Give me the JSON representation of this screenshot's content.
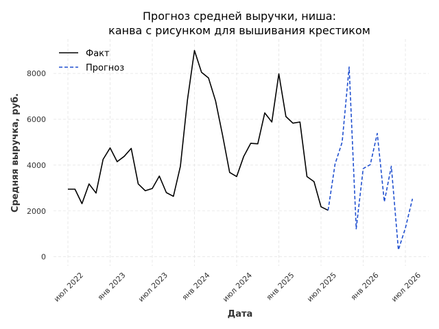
{
  "chart_data": {
    "type": "line",
    "title_line1": "Прогноз средней выручки, ниша:",
    "title_line2": "канва с рисунком для вышивания крестиком",
    "xlabel": "Дата",
    "ylabel": "Средняя выручка, руб.",
    "ylim": [
      -400,
      9500
    ],
    "yticks": [
      0,
      2000,
      4000,
      6000,
      8000
    ],
    "grid": true,
    "legend_position": "top-left",
    "xtick_labels": [
      "июл 2022",
      "янв 2023",
      "июл 2023",
      "янв 2024",
      "июл 2024",
      "янв 2025",
      "июл 2025",
      "янв 2026",
      "июл 2026"
    ],
    "xtick_dates": [
      "2022-07",
      "2023-01",
      "2023-07",
      "2024-01",
      "2024-07",
      "2025-01",
      "2025-07",
      "2026-01",
      "2026-07"
    ],
    "series": [
      {
        "name": "Факт",
        "color": "#000000",
        "style": "solid",
        "x": [
          "2022-07",
          "2022-08",
          "2022-09",
          "2022-10",
          "2022-11",
          "2022-12",
          "2023-01",
          "2023-02",
          "2023-03",
          "2023-04",
          "2023-05",
          "2023-06",
          "2023-07",
          "2023-08",
          "2023-09",
          "2023-10",
          "2023-11",
          "2023-12",
          "2024-01",
          "2024-02",
          "2024-03",
          "2024-04",
          "2024-05",
          "2024-06",
          "2024-07",
          "2024-08",
          "2024-09",
          "2024-10",
          "2024-11",
          "2024-12",
          "2025-01",
          "2025-02",
          "2025-03",
          "2025-04",
          "2025-05",
          "2025-06",
          "2025-07",
          "2025-08"
        ],
        "values": [
          2950,
          2950,
          2320,
          3180,
          2780,
          4250,
          4750,
          4150,
          4380,
          4730,
          3180,
          2880,
          2980,
          3520,
          2800,
          2640,
          3950,
          6850,
          9000,
          8050,
          7800,
          6800,
          5300,
          3680,
          3500,
          4380,
          4950,
          4930,
          6280,
          5880,
          7980,
          6120,
          5830,
          5880,
          3500,
          3280,
          2180,
          2030
        ]
      },
      {
        "name": "Прогноз",
        "color": "#1f4fcf",
        "style": "dashed",
        "x": [
          "2025-08",
          "2025-09",
          "2025-10",
          "2025-11",
          "2025-12",
          "2026-01",
          "2026-02",
          "2026-03",
          "2026-04",
          "2026-05",
          "2026-06",
          "2026-07",
          "2026-08"
        ],
        "values": [
          2030,
          4050,
          5000,
          8280,
          1220,
          3850,
          4020,
          5380,
          2400,
          3950,
          300,
          1250,
          2530
        ]
      }
    ]
  }
}
